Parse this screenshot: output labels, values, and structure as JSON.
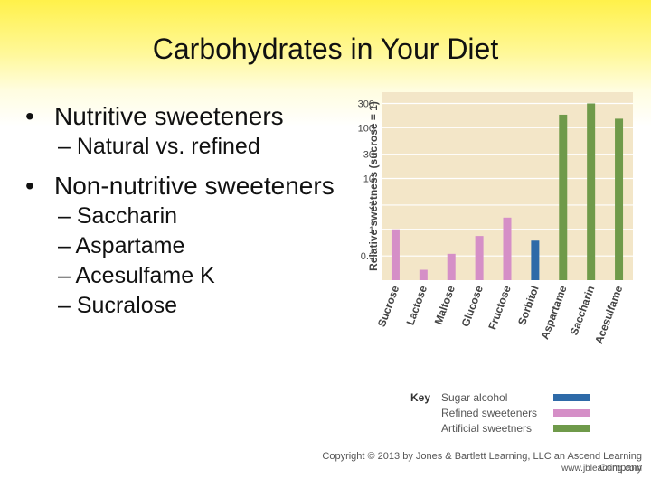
{
  "slide": {
    "title": "Carbohydrates in Your Diet",
    "bullets": [
      {
        "text": "Nutritive sweeteners",
        "subs": [
          "Natural vs. refined"
        ]
      },
      {
        "text": "Non-nutritive sweeteners",
        "subs": [
          "Saccharin",
          "Aspartame",
          "Acesulfame K",
          "Sucralose"
        ]
      }
    ]
  },
  "chart_data": {
    "type": "bar",
    "ylabel": "Relative sweetness (sucrose = 1)",
    "yscale": "log",
    "yticks": [
      0.3,
      1,
      3,
      10,
      30,
      100,
      300
    ],
    "ytick_labels": [
      "0.3",
      "1",
      "3",
      "10",
      "30",
      "100",
      "300"
    ],
    "categories": [
      "Sucrose",
      "Lactose",
      "Maltose",
      "Glucose",
      "Fructose",
      "Sorbitol",
      "Aspartame",
      "Saccharin",
      "Acesulfame"
    ],
    "values": [
      1,
      0.16,
      0.33,
      0.74,
      1.7,
      0.6,
      180,
      300,
      150
    ],
    "groups": [
      "Refined sweeteners",
      "Refined sweeteners",
      "Refined sweeteners",
      "Refined sweeteners",
      "Refined sweeteners",
      "Sugar alcohol",
      "Artificial sweetners",
      "Artificial sweetners",
      "Artificial sweetners"
    ],
    "colors": {
      "Sugar alcohol": "#2e6aa8",
      "Refined sweeteners": "#d58fc7",
      "Artificial sweetners": "#6f9a4a"
    },
    "plot_bg": "#f3e6c8",
    "grid": true
  },
  "key": {
    "title": "Key",
    "entries": [
      "Sugar alcohol",
      "Refined sweeteners",
      "Artificial sweetners"
    ]
  },
  "footer": {
    "copyright": "Copyright © 2013 by Jones & Bartlett Learning, LLC an Ascend Learning Company",
    "url": "www.jblearning.com"
  }
}
